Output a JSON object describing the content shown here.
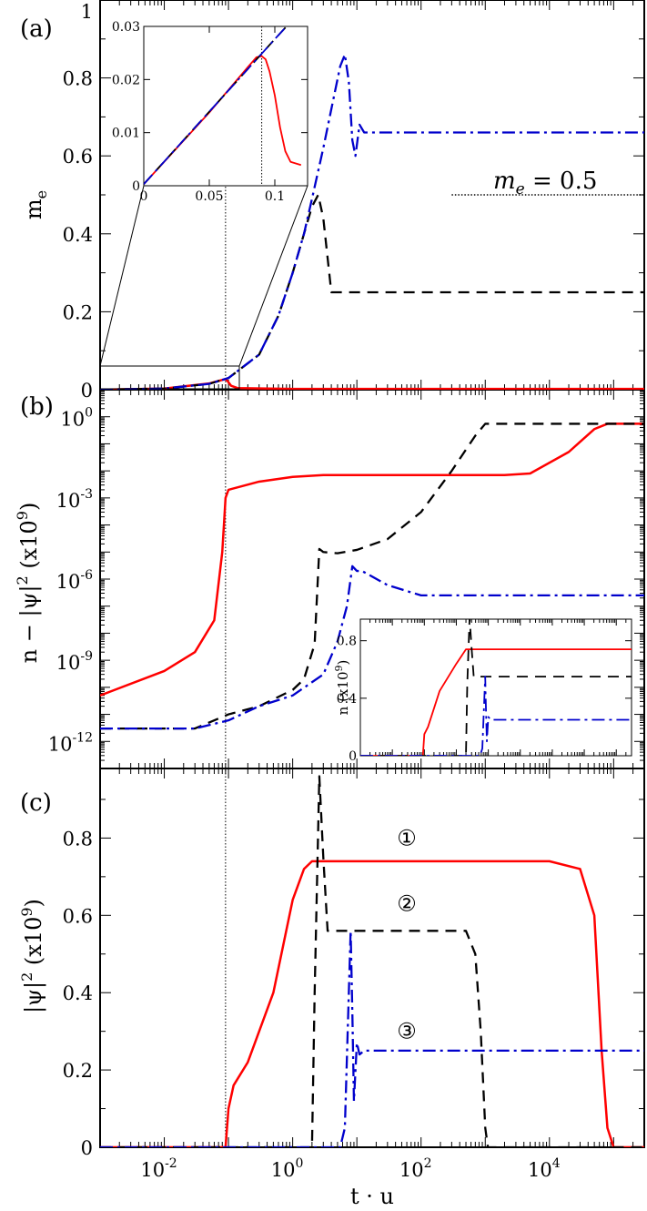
{
  "colors": {
    "series1": "#ff0000",
    "series2": "#000000",
    "series3": "#0000cc",
    "axis": "#000000"
  },
  "shared_x": {
    "label": "t · u",
    "scale": "log",
    "range": [
      0.001,
      300000
    ],
    "tick_labels": [
      {
        "value": 0.01,
        "base": "10",
        "exp": "-2"
      },
      {
        "value": 1,
        "base": "10",
        "exp": "0"
      },
      {
        "value": 100,
        "base": "10",
        "exp": "2"
      },
      {
        "value": 10000,
        "base": "10",
        "exp": "4"
      }
    ],
    "reference_line": 0.09
  },
  "chart_data": [
    {
      "panel": "(a)",
      "type": "line",
      "ylabel": "m",
      "ylabel_sub": "e",
      "xscale": "log",
      "yscale": "linear",
      "ylim": [
        0,
        1
      ],
      "yticks": [
        "0",
        "0.2",
        "0.4",
        "0.6",
        "0.8",
        "1"
      ],
      "annotation": {
        "lhs": "m",
        "sub": "e",
        "rhs": " = 0.5",
        "y_level": 0.5,
        "x_from": 300,
        "x_to": 300000
      },
      "series": [
        {
          "style": "solid",
          "x": [
            0.001,
            0.01,
            0.05,
            0.088,
            0.095,
            0.11,
            0.14,
            1,
            100,
            300000
          ],
          "y": [
            0.0003,
            0.003,
            0.016,
            0.027,
            0.024,
            0.01,
            0.004,
            0.002,
            0.002,
            0.002
          ]
        },
        {
          "style": "dashed",
          "x": [
            0.001,
            0.01,
            0.05,
            0.1,
            0.3,
            0.6,
            1,
            1.5,
            2,
            2.5,
            3,
            4,
            300000
          ],
          "y": [
            0.0003,
            0.003,
            0.015,
            0.03,
            0.09,
            0.19,
            0.3,
            0.4,
            0.47,
            0.5,
            0.44,
            0.25,
            0.25
          ]
        },
        {
          "style": "dashdot",
          "x": [
            0.001,
            0.01,
            0.05,
            0.1,
            0.3,
            0.6,
            1,
            1.5,
            2,
            3,
            4,
            5.5,
            6.5,
            7.5,
            8.5,
            9.5,
            11,
            13,
            300000
          ],
          "y": [
            0.0003,
            0.003,
            0.015,
            0.03,
            0.09,
            0.19,
            0.3,
            0.4,
            0.49,
            0.62,
            0.72,
            0.83,
            0.86,
            0.79,
            0.64,
            0.6,
            0.68,
            0.66,
            0.66
          ]
        }
      ],
      "inset": {
        "xscale": "linear",
        "xlim": [
          0,
          0.125
        ],
        "ylim": [
          0,
          0.03
        ],
        "xticks": [
          "0",
          "0.05",
          "0.1"
        ],
        "yticks": [
          "0",
          "0.01",
          "0.02",
          "0.03"
        ],
        "marker_x": 0.09,
        "series": [
          {
            "style": "solid",
            "x": [
              0,
              0.05,
              0.08,
              0.086,
              0.09,
              0.093,
              0.096,
              0.1,
              0.104,
              0.108,
              0.112,
              0.12
            ],
            "y": [
              0.0003,
              0.0138,
              0.0225,
              0.0242,
              0.0244,
              0.0238,
              0.0215,
              0.017,
              0.011,
              0.0065,
              0.0045,
              0.0039
            ]
          },
          {
            "style": "dashed",
            "x": [
              0,
              0.1,
              0.123
            ],
            "y": [
              0.0003,
              0.0276,
              0.0338
            ]
          },
          {
            "style": "dashdot",
            "x": [
              0,
              0.1,
              0.123
            ],
            "y": [
              0.0003,
              0.0276,
              0.0338
            ]
          }
        ]
      }
    },
    {
      "panel": "(b)",
      "type": "line",
      "ylabel": "n − |ψ|",
      "ylabel_sup": "2",
      "ylabel_suffix": " (x10",
      "ylabel_suffix_sup": "9",
      "ylabel_end": ")",
      "xscale": "log",
      "yscale": "log",
      "ylim": [
        1e-13,
        10
      ],
      "ytick_labels": [
        {
          "value": 1e-12,
          "base": "10",
          "exp": "-12"
        },
        {
          "value": 1e-09,
          "base": "10",
          "exp": "-9"
        },
        {
          "value": 1e-06,
          "base": "10",
          "exp": "-6"
        },
        {
          "value": 0.001,
          "base": "10",
          "exp": "-3"
        },
        {
          "value": 1,
          "base": "10",
          "exp": "0"
        }
      ],
      "series": [
        {
          "style": "solid",
          "x": [
            0.001,
            0.01,
            0.03,
            0.06,
            0.08,
            0.09,
            0.1,
            0.3,
            1,
            3,
            100,
            2000,
            5000,
            20000,
            50000,
            80000,
            300000
          ],
          "y": [
            5e-11,
            4e-10,
            2e-09,
            3e-08,
            1e-05,
            0.001,
            0.002,
            0.004,
            0.006,
            0.007,
            0.007,
            0.007,
            0.008,
            0.05,
            0.35,
            0.55,
            0.55
          ]
        },
        {
          "style": "dashed",
          "x": [
            0.001,
            0.03,
            0.1,
            0.3,
            1,
            1.5,
            2.2,
            2.6,
            3,
            5,
            10,
            30,
            100,
            300,
            700,
            1000,
            300000
          ],
          "y": [
            3e-12,
            3e-12,
            1e-11,
            2e-11,
            8e-11,
            2e-10,
            4e-09,
            1.3e-05,
            1e-05,
            9e-06,
            1.2e-05,
            3e-05,
            0.0003,
            0.01,
            0.2,
            0.55,
            0.55
          ]
        },
        {
          "style": "dashdot",
          "x": [
            0.001,
            0.03,
            0.1,
            0.3,
            1,
            3,
            5,
            7,
            8.5,
            10,
            12,
            30,
            100,
            300000
          ],
          "y": [
            3e-12,
            3e-12,
            6e-12,
            2e-11,
            5e-11,
            3e-10,
            5e-09,
            1e-07,
            3e-06,
            2e-06,
            2e-06,
            6e-07,
            2.5e-07,
            2.5e-07
          ]
        }
      ],
      "inset": {
        "ylabel": "n (x10",
        "ylabel_sup": "9",
        "ylabel_end": ")",
        "xscale": "log",
        "xlim": [
          0.001,
          300000
        ],
        "ylim": [
          0,
          0.95
        ],
        "yticks": [
          "0",
          "0.4",
          "0.8"
        ],
        "series": [
          {
            "style": "solid",
            "x": [
              0.001,
              0.09,
              0.1,
              0.13,
              0.3,
              1,
              2,
              300000
            ],
            "y": [
              0,
              0,
              0.15,
              0.2,
              0.45,
              0.64,
              0.74,
              0.74
            ]
          },
          {
            "style": "dashed",
            "x": [
              0.001,
              2,
              2.2,
              2.6,
              3,
              3.5,
              300000
            ],
            "y": [
              0,
              0,
              0.5,
              0.96,
              0.75,
              0.55,
              0.55
            ]
          },
          {
            "style": "dashdot",
            "x": [
              0.001,
              5.5,
              6.5,
              8,
              8.5,
              9,
              10,
              12,
              300000
            ],
            "y": [
              0,
              0,
              0.05,
              0.55,
              0.3,
              0.1,
              0.27,
              0.25,
              0.25
            ]
          }
        ]
      }
    },
    {
      "panel": "(c)",
      "type": "line",
      "ylabel": "|ψ|",
      "ylabel_sup": "2",
      "ylabel_suffix": " (x10",
      "ylabel_suffix_sup": "9",
      "ylabel_end": ")",
      "xscale": "log",
      "yscale": "linear",
      "ylim": [
        0,
        0.98
      ],
      "yticks": [
        "0",
        "0.2",
        "0.4",
        "0.6",
        "0.8"
      ],
      "curve_labels": [
        {
          "text": "①",
          "x": 60,
          "y": 0.8
        },
        {
          "text": "②",
          "x": 60,
          "y": 0.63
        },
        {
          "text": "③",
          "x": 60,
          "y": 0.3
        }
      ],
      "series": [
        {
          "style": "solid",
          "x": [
            0.001,
            0.09,
            0.1,
            0.12,
            0.2,
            0.5,
            1,
            1.5,
            2,
            100,
            10000,
            30000,
            50000,
            65000,
            80000,
            100000,
            300000
          ],
          "y": [
            0,
            0,
            0.1,
            0.16,
            0.22,
            0.4,
            0.64,
            0.72,
            0.74,
            0.74,
            0.74,
            0.72,
            0.6,
            0.25,
            0.05,
            0,
            0
          ]
        },
        {
          "style": "dashed",
          "x": [
            0.001,
            2,
            2.2,
            2.6,
            3,
            3.5,
            4,
            500,
            700,
            850,
            1000,
            1100,
            300000
          ],
          "y": [
            0,
            0,
            0.4,
            0.96,
            0.75,
            0.56,
            0.56,
            0.56,
            0.5,
            0.3,
            0.05,
            0,
            0
          ]
        },
        {
          "style": "dashdot",
          "x": [
            0.001,
            5.5,
            6.5,
            8,
            8.5,
            9,
            10,
            11,
            13,
            300000
          ],
          "y": [
            0,
            0,
            0.05,
            0.56,
            0.35,
            0.12,
            0.27,
            0.24,
            0.25,
            0.25
          ]
        }
      ]
    }
  ]
}
